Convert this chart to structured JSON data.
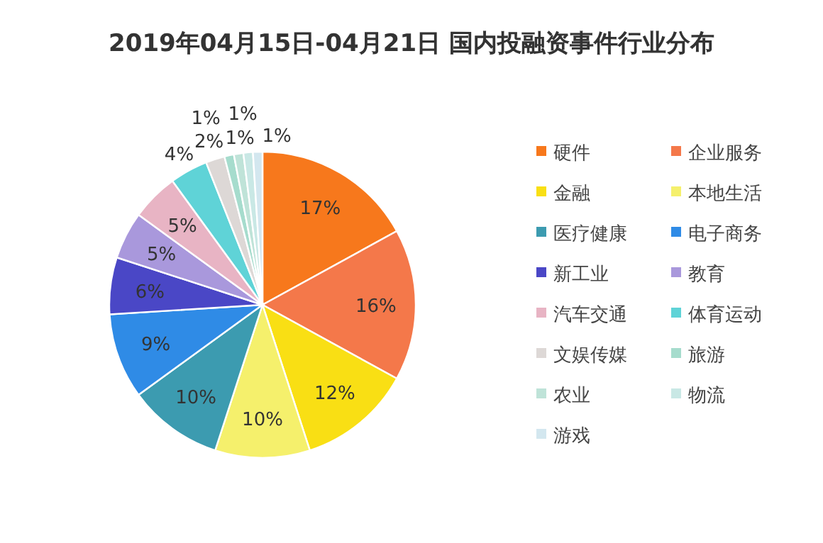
{
  "chart_data": {
    "type": "pie",
    "title": "2019年04月15日-04月21日 国内投融资事件行业分布",
    "categories": [
      "硬件",
      "企业服务",
      "金融",
      "本地生活",
      "医疗健康",
      "电子商务",
      "新工业",
      "教育",
      "汽车交通",
      "体育运动",
      "文娱传媒",
      "旅游",
      "农业",
      "物流",
      "游戏"
    ],
    "values": [
      17,
      16,
      12,
      10,
      10,
      9,
      6,
      5,
      5,
      4,
      2,
      1,
      1,
      1,
      1
    ],
    "colors": [
      "#f7781c",
      "#f4784a",
      "#f9df14",
      "#f5f06c",
      "#3c9bb0",
      "#2f8be6",
      "#4a47c6",
      "#a998dc",
      "#e8b4c4",
      "#5fd3d7",
      "#ddd8d6",
      "#a6dccd",
      "#bfe3d8",
      "#c9e8e5",
      "#d3e7ef"
    ],
    "value_labels": [
      "17%",
      "16%",
      "12%",
      "10%",
      "10%",
      "9%",
      "6%",
      "5%",
      "5%",
      "4%",
      "2%",
      "1%",
      "1%",
      "1%",
      "1%"
    ],
    "legend": "right"
  }
}
